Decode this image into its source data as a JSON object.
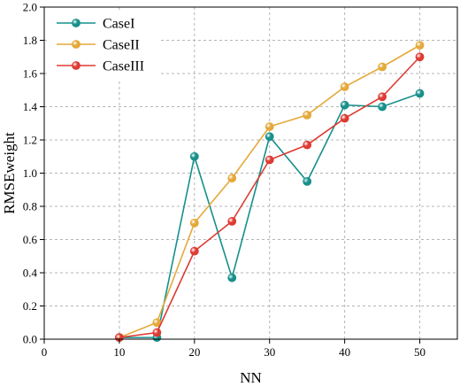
{
  "chart_data": {
    "type": "line",
    "xlabel": "NN",
    "ylabel": "RMSEweight",
    "xlim": [
      0,
      55
    ],
    "ylim": [
      0,
      2.0
    ],
    "xticks": [
      0,
      10,
      20,
      30,
      40,
      50
    ],
    "yticks": [
      0.0,
      0.2,
      0.4,
      0.6,
      0.8,
      1.0,
      1.2,
      1.4,
      1.6,
      1.8,
      2.0
    ],
    "xtick_labels": [
      "0",
      "10",
      "20",
      "30",
      "40",
      "50"
    ],
    "ytick_labels": [
      "0.0",
      "0.2",
      "0.4",
      "0.6",
      "0.8",
      "1.0",
      "1.2",
      "1.4",
      "1.6",
      "1.8",
      "2.0"
    ],
    "grid": true,
    "legend_position": "top-left",
    "x": [
      10,
      15,
      20,
      25,
      30,
      35,
      40,
      45,
      50
    ],
    "series": [
      {
        "name": "CaseI",
        "color": "#17908a",
        "values": [
          0.01,
          0.01,
          1.1,
          0.37,
          1.22,
          0.95,
          1.41,
          1.4,
          1.48
        ]
      },
      {
        "name": "CaseII",
        "color": "#e4a93a",
        "values": [
          0.01,
          0.1,
          0.7,
          0.97,
          1.28,
          1.35,
          1.52,
          1.64,
          1.77
        ]
      },
      {
        "name": "CaseIII",
        "color": "#dd3b33",
        "values": [
          0.01,
          0.04,
          0.53,
          0.71,
          1.08,
          1.17,
          1.33,
          1.46,
          1.7
        ]
      }
    ]
  }
}
